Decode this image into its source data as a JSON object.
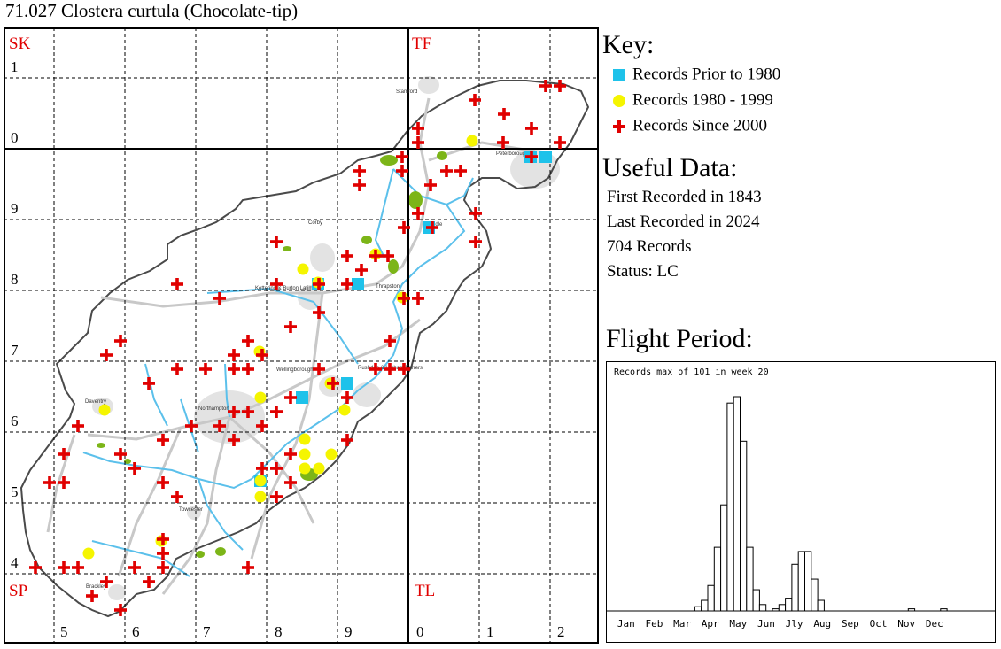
{
  "title": "71.027 Clostera curtula (Chocolate-tip)",
  "map": {
    "major_squares": [
      "SK",
      "TF",
      "SP",
      "TL"
    ],
    "easting_labels": [
      "5",
      "6",
      "7",
      "8",
      "9",
      "0",
      "1",
      "2"
    ],
    "northing_labels": [
      "1",
      "0",
      "9",
      "8",
      "7",
      "6",
      "5",
      "4"
    ],
    "place_labels": [
      "Stamford",
      "Peterborough",
      "Corby",
      "Oundle",
      "Kettering & Burton Latimer",
      "Thrapston",
      "Wellingborough",
      "Rushden & Higham Ferrers",
      "Daventry",
      "Northampton",
      "Towcester",
      "Brackley"
    ],
    "colors": {
      "grid_major": "#000000",
      "grid_minor": "#000000",
      "boundary": "#444444",
      "river": "#5bc0eb",
      "road": "#c8c8c8",
      "urban": "#e0e0e0",
      "woodland": "#7cb518",
      "square_label": "#e00000"
    }
  },
  "key": {
    "heading": "Key:",
    "items": [
      {
        "label": "Records Prior to 1980",
        "symbol": "cyan-square-icon",
        "color": "#1ec2ea"
      },
      {
        "label": "Records 1980 - 1999",
        "symbol": "yellow-circle-icon",
        "color": "#f5f500"
      },
      {
        "label": "Records Since 2000",
        "symbol": "red-cross-icon",
        "color": "#e00000"
      }
    ]
  },
  "useful_data": {
    "heading": "Useful Data:",
    "lines": [
      "First Recorded in 1843",
      "Last Recorded in 2024",
      "704 Records",
      "Status: LC"
    ]
  },
  "flight_period": {
    "heading": "Flight Period:",
    "caption": "Records max of 101 in week 20"
  },
  "chart_data": {
    "type": "bar",
    "title": "Flight Period:",
    "subtitle": "Records max of 101 in week 20",
    "x_unit": "week",
    "month_labels": [
      "Jan",
      "Feb",
      "Mar",
      "Apr",
      "May",
      "Jun",
      "Jly",
      "Aug",
      "Sep",
      "Oct",
      "Nov",
      "Dec"
    ],
    "ylim": [
      0,
      101
    ],
    "grid": false,
    "weeks": [
      1,
      2,
      3,
      4,
      5,
      6,
      7,
      8,
      9,
      10,
      11,
      12,
      13,
      14,
      15,
      16,
      17,
      18,
      19,
      20,
      21,
      22,
      23,
      24,
      25,
      26,
      27,
      28,
      29,
      30,
      31,
      32,
      33,
      34,
      35,
      36,
      37,
      38,
      39,
      40,
      41,
      42,
      43,
      44,
      45,
      46,
      47,
      48,
      49,
      50,
      51,
      52
    ],
    "values": [
      0,
      0,
      0,
      0,
      0,
      0,
      0,
      0,
      0,
      0,
      0,
      0,
      0,
      2,
      5,
      12,
      30,
      50,
      98,
      101,
      80,
      30,
      10,
      3,
      0,
      1,
      3,
      6,
      22,
      28,
      28,
      15,
      5,
      0,
      0,
      0,
      0,
      0,
      0,
      0,
      0,
      0,
      0,
      0,
      0,
      0,
      1,
      0,
      0,
      0,
      0,
      1
    ]
  },
  "records": {
    "pre1980": [
      [
        480,
        226
      ],
      [
        595,
        146
      ],
      [
        612,
        146
      ],
      [
        355,
        290
      ],
      [
        400,
        290
      ],
      [
        388,
        402
      ],
      [
        337,
        418
      ],
      [
        290,
        512
      ]
    ],
    "y1980_1999": [
      [
        529,
        128
      ],
      [
        338,
        273
      ],
      [
        355,
        288
      ],
      [
        420,
        256
      ],
      [
        450,
        305
      ],
      [
        289,
        366
      ],
      [
        290,
        418
      ],
      [
        369,
        402
      ],
      [
        385,
        432
      ],
      [
        114,
        432
      ],
      [
        340,
        465
      ],
      [
        340,
        482
      ],
      [
        370,
        482
      ],
      [
        340,
        498
      ],
      [
        356,
        498
      ],
      [
        290,
        512
      ],
      [
        290,
        530
      ],
      [
        96,
        594
      ],
      [
        178,
        580
      ]
    ],
    "since2000": [
      [
        612,
        66
      ],
      [
        628,
        66
      ],
      [
        532,
        82
      ],
      [
        565,
        98
      ],
      [
        468,
        114
      ],
      [
        596,
        114
      ],
      [
        468,
        130
      ],
      [
        564,
        130
      ],
      [
        628,
        130
      ],
      [
        596,
        146
      ],
      [
        450,
        146
      ],
      [
        450,
        162
      ],
      [
        402,
        162
      ],
      [
        402,
        178
      ],
      [
        482,
        178
      ],
      [
        500,
        162
      ],
      [
        516,
        162
      ],
      [
        533,
        210
      ],
      [
        468,
        210
      ],
      [
        484,
        226
      ],
      [
        452,
        226
      ],
      [
        533,
        242
      ],
      [
        308,
        242
      ],
      [
        388,
        258
      ],
      [
        420,
        258
      ],
      [
        434,
        258
      ],
      [
        404,
        274
      ],
      [
        196,
        290
      ],
      [
        308,
        290
      ],
      [
        356,
        290
      ],
      [
        388,
        290
      ],
      [
        468,
        306
      ],
      [
        452,
        306
      ],
      [
        244,
        306
      ],
      [
        356,
        322
      ],
      [
        324,
        338
      ],
      [
        436,
        354
      ],
      [
        132,
        354
      ],
      [
        116,
        370
      ],
      [
        276,
        354
      ],
      [
        292,
        370
      ],
      [
        260,
        370
      ],
      [
        260,
        386
      ],
      [
        276,
        386
      ],
      [
        228,
        386
      ],
      [
        196,
        386
      ],
      [
        164,
        402
      ],
      [
        356,
        386
      ],
      [
        420,
        386
      ],
      [
        436,
        386
      ],
      [
        452,
        386
      ],
      [
        372,
        402
      ],
      [
        388,
        418
      ],
      [
        324,
        418
      ],
      [
        260,
        434
      ],
      [
        276,
        434
      ],
      [
        308,
        434
      ],
      [
        212,
        450
      ],
      [
        244,
        450
      ],
      [
        84,
        450
      ],
      [
        180,
        466
      ],
      [
        260,
        466
      ],
      [
        292,
        450
      ],
      [
        132,
        482
      ],
      [
        68,
        482
      ],
      [
        148,
        498
      ],
      [
        324,
        482
      ],
      [
        308,
        498
      ],
      [
        388,
        466
      ],
      [
        292,
        498
      ],
      [
        180,
        514
      ],
      [
        324,
        514
      ],
      [
        308,
        530
      ],
      [
        52,
        514
      ],
      [
        68,
        514
      ],
      [
        196,
        530
      ],
      [
        180,
        578
      ],
      [
        180,
        594
      ],
      [
        180,
        610
      ],
      [
        148,
        610
      ],
      [
        116,
        626
      ],
      [
        164,
        626
      ],
      [
        84,
        610
      ],
      [
        68,
        610
      ],
      [
        36,
        610
      ],
      [
        100,
        642
      ],
      [
        132,
        658
      ],
      [
        276,
        610
      ]
    ]
  }
}
